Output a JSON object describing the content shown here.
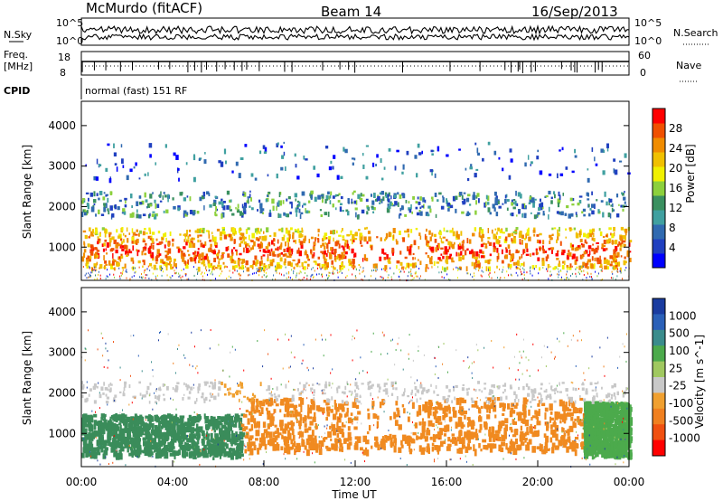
{
  "header": {
    "station": "McMurdo (fitACF)",
    "beam": "Beam 14",
    "date": "16/Sep/2013"
  },
  "noise_panel": {
    "left_label": "N.Sky",
    "right_label": "N.Search",
    "right_tick_top": "10^5",
    "right_tick_bottom": "10^0",
    "left_tick_top": "10^5",
    "left_tick_bottom": "10^0"
  },
  "freq_panel": {
    "left_label_top": "Freq.",
    "left_label_bottom": "[MHz]",
    "left_tick_top": "18",
    "left_tick_bottom": "8",
    "right_label": "Nave",
    "right_tick_top": "60",
    "right_tick_bottom": "0"
  },
  "cpid": {
    "label": "CPID",
    "value": "normal (fast) 151 RF"
  },
  "chart_data": [
    {
      "type": "heatmap",
      "quantity": "Power",
      "ylabel": "Slant Range [km]",
      "ylim": [
        180,
        4600
      ],
      "yticks": [
        "1000",
        "2000",
        "3000",
        "4000"
      ],
      "colorbar": {
        "label": "Power [dB]",
        "ticks": [
          "4",
          "8",
          "12",
          "16",
          "20",
          "24",
          "28"
        ],
        "colors": [
          "#0000ff",
          "#2040c0",
          "#306ab0",
          "#40a0a0",
          "#3a9060",
          "#8cd03c",
          "#f0f000",
          "#f0c000",
          "#f08c00",
          "#f05000",
          "#ff0000"
        ]
      },
      "echo_bands": [
        {
          "range_km": [
            500,
            1500
          ],
          "strength": "strong"
        },
        {
          "range_km": [
            1800,
            2400
          ],
          "strength": "moderate"
        },
        {
          "range_km": [
            2800,
            3500
          ],
          "strength": "sparse"
        }
      ]
    },
    {
      "type": "heatmap",
      "quantity": "Velocity",
      "ylabel": "Slant Range [km]",
      "xlabel": "Time UT",
      "xticks": [
        "00:00",
        "04:00",
        "08:00",
        "12:00",
        "16:00",
        "20:00",
        "00:00"
      ],
      "ylim": [
        180,
        4600
      ],
      "yticks": [
        "1000",
        "2000",
        "3000",
        "4000"
      ],
      "colorbar": {
        "label": "Velocity [m s^-1]",
        "ticks": [
          "1000",
          "500",
          "100",
          "25",
          "-25",
          "-100",
          "-500",
          "-1000"
        ],
        "colors": [
          "#1a3ca0",
          "#2a60b8",
          "#3a8c8c",
          "#4caa4c",
          "#a0c860",
          "#c8c8c8",
          "#f0a030",
          "#f08020",
          "#f05010",
          "#ff0000"
        ]
      },
      "dominant_flow": [
        {
          "time_ut": [
            "00:00",
            "07:00"
          ],
          "range_km": [
            500,
            1500
          ],
          "sign": "positive",
          "color": "#3a8c5a"
        },
        {
          "time_ut": [
            "07:00",
            "22:00"
          ],
          "range_km": [
            600,
            1900
          ],
          "sign": "negative",
          "color": "#f08a20"
        },
        {
          "time_ut": [
            "22:00",
            "24:00"
          ],
          "range_km": [
            500,
            1800
          ],
          "sign": "positive",
          "color": "#4caa4c"
        }
      ]
    }
  ]
}
